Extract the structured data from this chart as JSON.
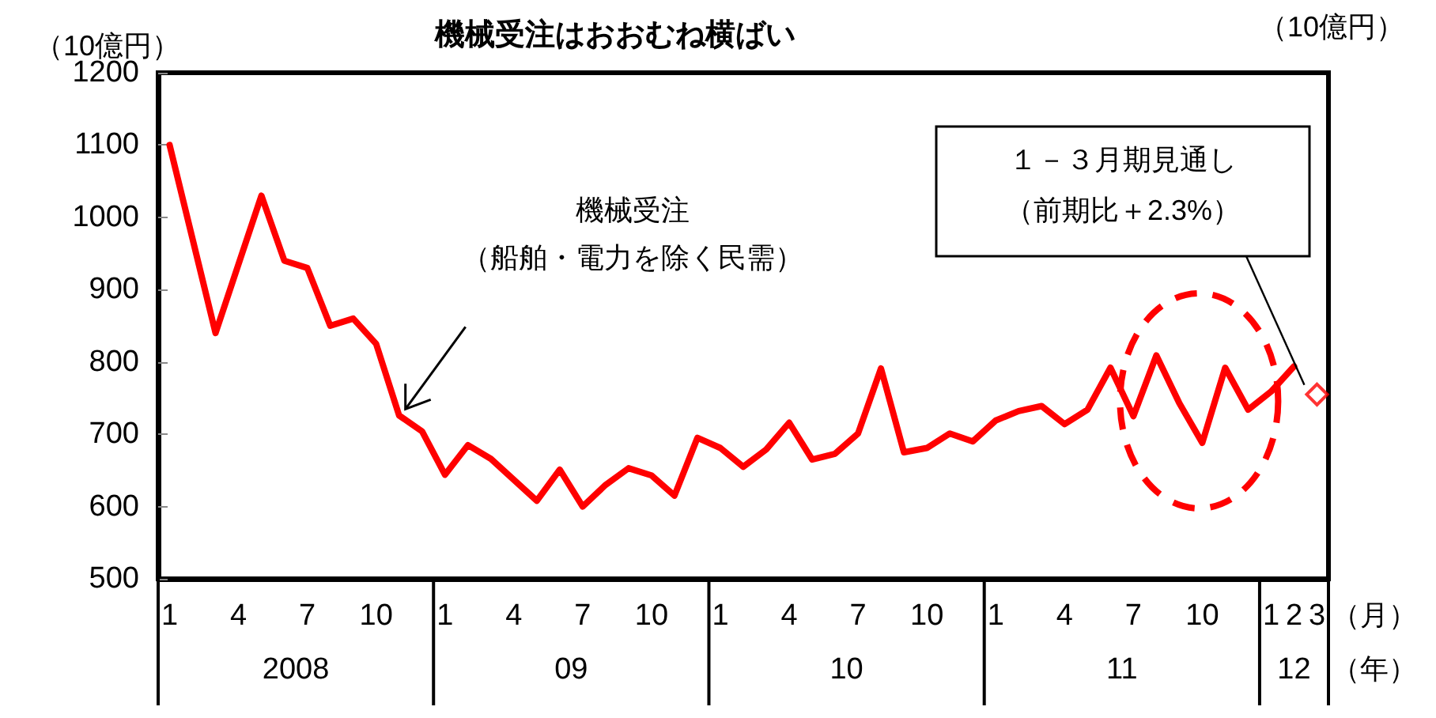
{
  "chart_data": {
    "type": "line",
    "title": "機械受注はおおむね横ばい",
    "ylabel": "（10億円）",
    "xlabel": "（月）",
    "categories": [
      "1",
      null,
      null,
      "4",
      null,
      null,
      "7",
      null,
      null,
      "10",
      null,
      null,
      "1",
      null,
      null,
      "4",
      null,
      null,
      "7",
      null,
      null,
      "10",
      null,
      null,
      "1",
      null,
      null,
      "4",
      null,
      null,
      "7",
      null,
      null,
      "10",
      null,
      null,
      "1",
      null,
      null,
      "4",
      null,
      null,
      "7",
      null,
      null,
      "10",
      null,
      null,
      "1",
      "2",
      "3"
    ],
    "series": [
      {
        "color": "#ff0000",
        "values": [
          1100,
          970,
          840,
          935,
          1030,
          940,
          930,
          850,
          860,
          825,
          726,
          704,
          644,
          685,
          666,
          637,
          608,
          651,
          600,
          630,
          653,
          643,
          615,
          695,
          681,
          655,
          679,
          716,
          665,
          673,
          701,
          791,
          675,
          681,
          701,
          690,
          719,
          732,
          739,
          714,
          734,
          792,
          725,
          809,
          743,
          688,
          792,
          734,
          759,
          794,
          null
        ]
      },
      {
        "type": "scatter",
        "marker": "diamond",
        "color": "#ff0000",
        "values": [
          null,
          null,
          null,
          null,
          null,
          null,
          null,
          null,
          null,
          null,
          null,
          null,
          null,
          null,
          null,
          null,
          null,
          null,
          null,
          null,
          null,
          null,
          null,
          null,
          null,
          null,
          null,
          null,
          null,
          null,
          null,
          null,
          null,
          null,
          null,
          null,
          null,
          null,
          null,
          null,
          null,
          null,
          null,
          null,
          null,
          null,
          null,
          null,
          null,
          null,
          755
        ]
      }
    ],
    "annotations": [
      "機械受注",
      "（船舶・電力を除く民需）",
      "１－３月期見通し",
      "（前期比＋2.3%）",
      "（10億円）",
      "（年）",
      "2008",
      "09",
      "10",
      "11",
      "12"
    ],
    "ylim": [
      500,
      1200
    ],
    "yticks": [
      500,
      600,
      700,
      800,
      900,
      1000,
      1100,
      1200
    ],
    "grid": false,
    "marker": "none",
    "line_style": "solid"
  }
}
